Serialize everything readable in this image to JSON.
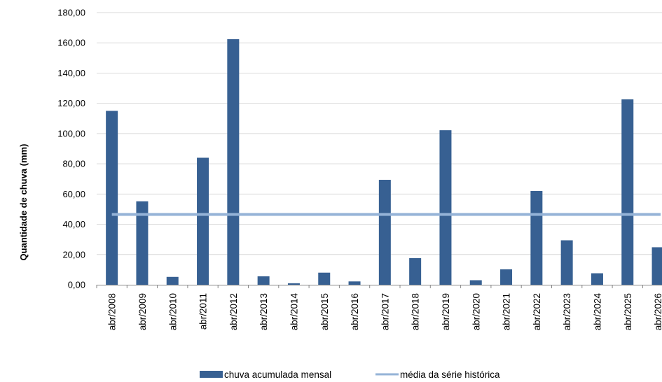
{
  "chart_data": {
    "type": "bar",
    "title": "",
    "xlabel": "",
    "ylabel": "Quantidade de chuva (mm)",
    "ylim": [
      0,
      180
    ],
    "yticks": [
      "0,00",
      "20,00",
      "40,00",
      "60,00",
      "80,00",
      "100,00",
      "120,00",
      "140,00",
      "160,00",
      "180,00"
    ],
    "grid": "horizontal",
    "categories": [
      "abr/2008",
      "abr/2009",
      "abr/2010",
      "abr/2011",
      "abr/2012",
      "abr/2013",
      "abr/2014",
      "abr/2015",
      "abr/2016",
      "abr/2017",
      "abr/2018",
      "abr/2019",
      "abr/2020",
      "abr/2021",
      "abr/2022",
      "abr/2023",
      "abr/2024",
      "abr/2025",
      "abr/2026"
    ],
    "series": [
      {
        "name": "chuva acumulada mensal",
        "type": "bar",
        "color": "#376092",
        "values": [
          115.0,
          55.2,
          5.2,
          84.0,
          162.4,
          5.6,
          1.0,
          8.0,
          2.2,
          69.4,
          17.6,
          102.2,
          3.0,
          10.2,
          62.0,
          29.4,
          7.6,
          122.6,
          24.8
        ]
      },
      {
        "name": "média da série histórica",
        "type": "line",
        "color": "#95B3D7",
        "value": 46.5
      }
    ],
    "legend": "bottom"
  }
}
